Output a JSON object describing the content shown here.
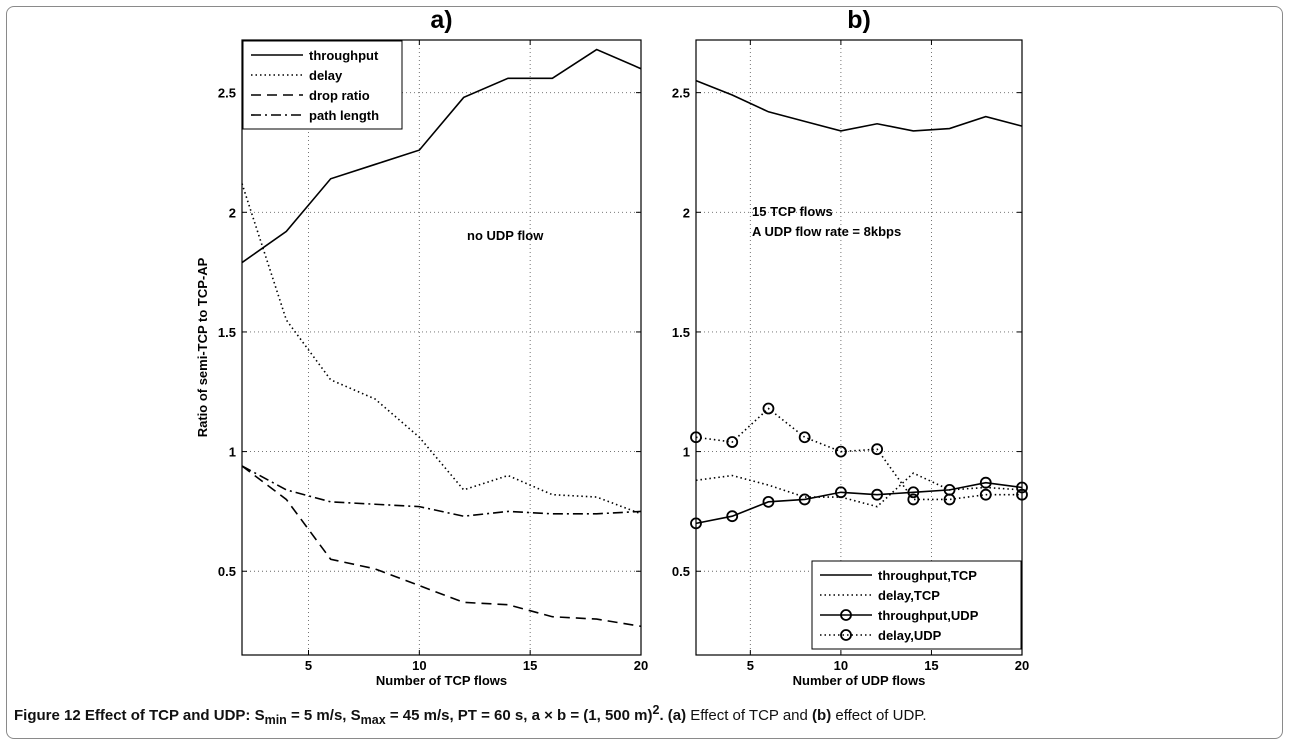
{
  "figure_caption": {
    "lead": "Figure 12 Effect of TCP and UDP: S",
    "lead_min_sub": "min",
    "lead_min_val": " = 5 m/s, S",
    "lead_max_sub": "max",
    "lead_max_val": " = 45 m/s, PT = 60 s, a × b = (1, 500 m)",
    "lead_sup": "2",
    "lead_end": ". (a)",
    "mid": " Effect of TCP and ",
    "b_label": "(b)",
    "tail": " effect of UDP."
  },
  "colors": {
    "line": "#000000",
    "grid": "#666666",
    "axes": "#000000",
    "frame": "#8a8a8a"
  },
  "chart_data": [
    {
      "panel_title": "a)",
      "type": "line",
      "xlabel": "Number of TCP flows",
      "ylabel": "Ratio of semi-TCP to TCP-AP",
      "xlim": [
        2,
        20
      ],
      "ylim": [
        0.15,
        2.72
      ],
      "xticks": [
        5,
        10,
        15,
        20
      ],
      "yticks": [
        0.5,
        1,
        1.5,
        2,
        2.5
      ],
      "grid": true,
      "legend_position": "top-left",
      "annotation": "no UDP flow",
      "x": [
        2,
        4,
        6,
        8,
        10,
        12,
        14,
        16,
        18,
        20
      ],
      "series": [
        {
          "name": "throughput",
          "style": "solid",
          "marker": "none",
          "values": [
            1.79,
            1.92,
            2.14,
            2.2,
            2.26,
            2.48,
            2.56,
            2.56,
            2.68,
            2.6
          ]
        },
        {
          "name": "delay",
          "style": "dotted",
          "marker": "none",
          "values": [
            2.12,
            1.55,
            1.3,
            1.22,
            1.06,
            0.84,
            0.9,
            0.82,
            0.81,
            0.74
          ]
        },
        {
          "name": "drop ratio",
          "style": "dashed",
          "marker": "none",
          "values": [
            0.94,
            0.8,
            0.55,
            0.51,
            0.44,
            0.37,
            0.36,
            0.31,
            0.3,
            0.27
          ]
        },
        {
          "name": "path length",
          "style": "dashdot",
          "marker": "none",
          "values": [
            0.94,
            0.84,
            0.79,
            0.78,
            0.77,
            0.73,
            0.75,
            0.74,
            0.74,
            0.75
          ]
        }
      ]
    },
    {
      "panel_title": "b)",
      "type": "line",
      "xlabel": "Number of UDP flows",
      "ylabel": "",
      "xlim": [
        2,
        20
      ],
      "ylim": [
        0.15,
        2.72
      ],
      "xticks": [
        5,
        10,
        15,
        20
      ],
      "yticks": [
        0.5,
        1,
        1.5,
        2,
        2.5
      ],
      "grid": true,
      "legend_position": "bottom-right",
      "annotation_lines": [
        "15 TCP flows",
        "A UDP flow rate = 8kbps"
      ],
      "x": [
        2,
        4,
        6,
        8,
        10,
        12,
        14,
        16,
        18,
        20
      ],
      "series": [
        {
          "name": "throughput,TCP",
          "style": "solid",
          "marker": "none",
          "values": [
            2.55,
            2.49,
            2.42,
            2.38,
            2.34,
            2.37,
            2.34,
            2.35,
            2.4,
            2.36
          ]
        },
        {
          "name": "delay,TCP",
          "style": "dotted",
          "marker": "none",
          "values": [
            0.88,
            0.9,
            0.86,
            0.81,
            0.81,
            0.77,
            0.91,
            0.84,
            0.85,
            0.84
          ]
        },
        {
          "name": "throughput,UDP",
          "style": "solid",
          "marker": "circle",
          "values": [
            0.7,
            0.73,
            0.79,
            0.8,
            0.83,
            0.82,
            0.83,
            0.84,
            0.87,
            0.85
          ]
        },
        {
          "name": "delay,UDP",
          "style": "dotted",
          "marker": "circle",
          "values": [
            1.06,
            1.04,
            1.18,
            1.06,
            1.0,
            1.01,
            0.8,
            0.8,
            0.82,
            0.82
          ]
        }
      ]
    }
  ]
}
